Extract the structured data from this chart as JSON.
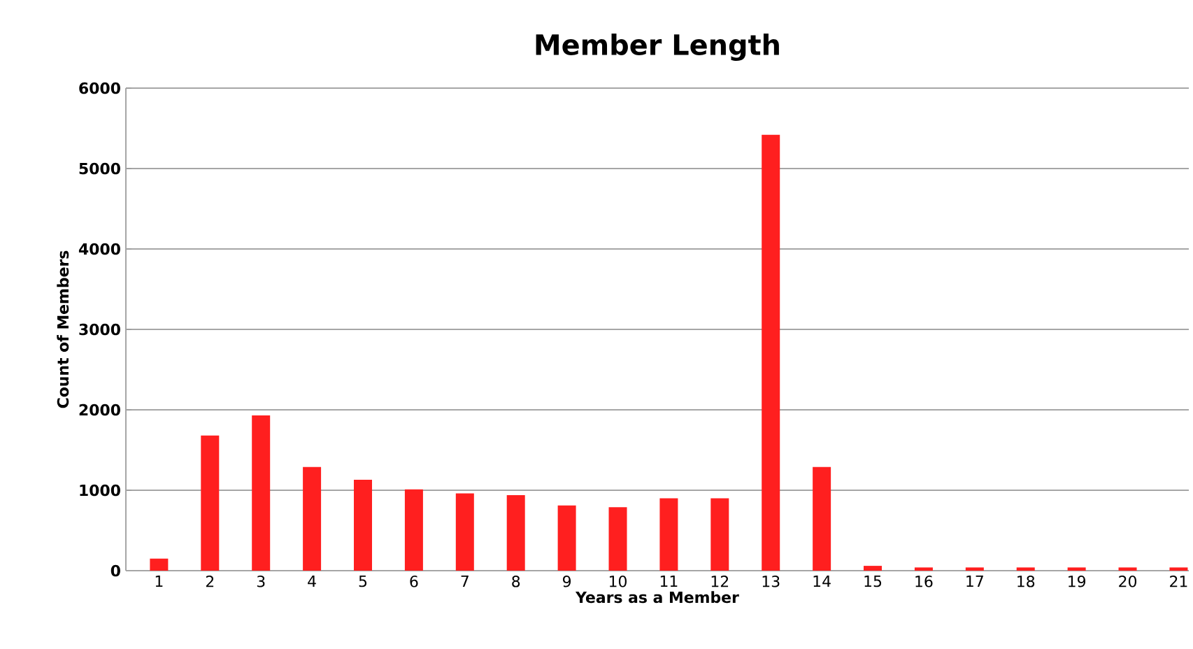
{
  "chart_data": {
    "type": "bar",
    "title": "Member Length",
    "xlabel": "Years as a Member",
    "ylabel": "Count of Members",
    "categories": [
      "1",
      "2",
      "3",
      "4",
      "5",
      "6",
      "7",
      "8",
      "9",
      "10",
      "11",
      "12",
      "13",
      "14",
      "15",
      "16",
      "17",
      "18",
      "19",
      "20",
      "21"
    ],
    "values": [
      150,
      1680,
      1930,
      1290,
      1130,
      1010,
      960,
      940,
      810,
      790,
      900,
      900,
      5420,
      1290,
      60,
      40,
      40,
      40,
      40,
      40,
      40
    ],
    "color": "#ff1f1f",
    "ylim": [
      0,
      6000
    ],
    "yticks": [
      0,
      1000,
      2000,
      3000,
      4000,
      5000,
      6000
    ],
    "grid": "y"
  }
}
